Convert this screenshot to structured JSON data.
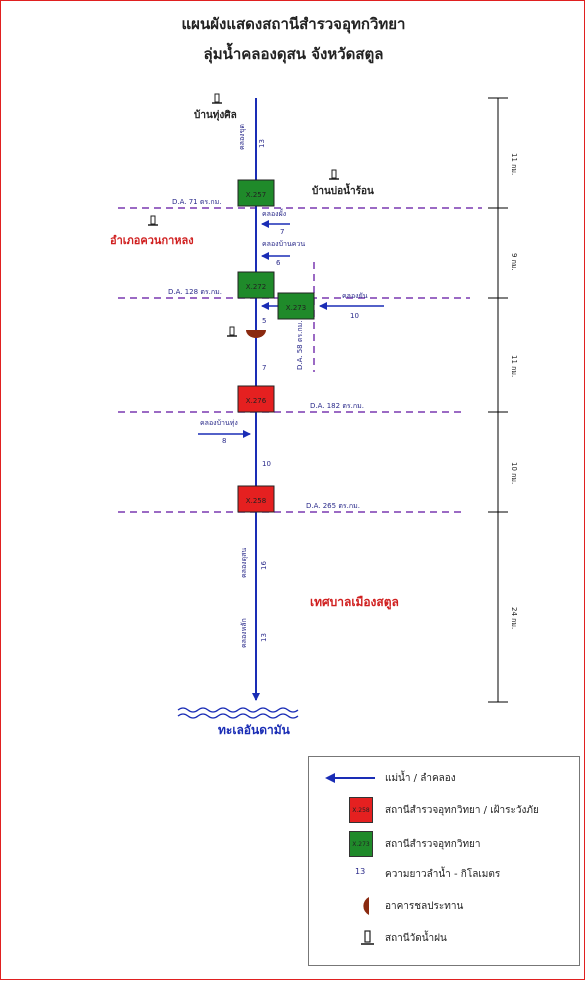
{
  "title_line1": "แผนผังแสดงสถานีสำรวจอุทกวิทยา",
  "title_line2": "ลุ่มน้ำคลองดุสน จังหวัดสตูล",
  "colors": {
    "river": "#1a2db5",
    "hydro_warning_station": "#e52020",
    "hydro_station": "#1f8a2a",
    "drainage_line": "#7a38b0",
    "label_text": "#2a2a8a",
    "frame": "#e02020"
  },
  "places": {
    "top_village": "บ้านทุ่งศิล",
    "right_village": "บ้านบ่อน้ำร้อน",
    "left_subdistrict": "อำเภอควนกาหลง",
    "municipality": "เทศบาลเมืองสตูล",
    "sea": "ทะเลอันดามัน"
  },
  "stations": [
    {
      "code": "X.257",
      "type": "hydro"
    },
    {
      "code": "X.272",
      "type": "hydro"
    },
    {
      "code": "X.273",
      "type": "hydro"
    },
    {
      "code": "X.276",
      "type": "warning"
    },
    {
      "code": "X.258",
      "type": "warning"
    }
  ],
  "drainage_areas": [
    {
      "label": "D.A. 71 ตร.กม."
    },
    {
      "label": "D.A. 128 ตร.กม."
    },
    {
      "label": "D.A. 58 ตร.กม."
    },
    {
      "label": "D.A. 182 ตร.กม."
    },
    {
      "label": "D.A. 265 ตร.กม."
    }
  ],
  "tributaries": [
    {
      "name": "คลองขุด",
      "length": "13"
    },
    {
      "name": "คลองผั้ง",
      "length": "7"
    },
    {
      "name": "คลองบ้านควน",
      "length": "6"
    },
    {
      "name": "คลองยัน",
      "length": "10"
    },
    {
      "name": "คลองบ้านทุ่ง",
      "length": "8"
    },
    {
      "name": "คลองดุสน",
      "length": "16"
    },
    {
      "name": "คลองหลัก",
      "length": "13"
    }
  ],
  "reach_lengths": [
    "5",
    "7",
    "10"
  ],
  "segments": [
    {
      "label": "11 กม."
    },
    {
      "label": "9 กม."
    },
    {
      "label": "11 กม."
    },
    {
      "label": "10 กม."
    },
    {
      "label": "24 กม."
    }
  ],
  "legend": [
    {
      "symbol": "arrow",
      "text": "แม่น้ำ / ลำคลอง"
    },
    {
      "symbol": "red-square",
      "code": "X.258",
      "text": "สถานีสำรวจอุทกวิทยา / เฝ้าระวังภัย"
    },
    {
      "symbol": "green-square",
      "code": "X.273",
      "text": "สถานีสำรวจอุทกวิทยา"
    },
    {
      "symbol": "number",
      "sample": "13",
      "text": "ความยาวลำน้ำ - กิโลเมตร"
    },
    {
      "symbol": "weir",
      "text": "อาคารชลประทาน"
    },
    {
      "symbol": "rain-gauge",
      "text": "สถานีวัดน้ำฝน"
    }
  ]
}
